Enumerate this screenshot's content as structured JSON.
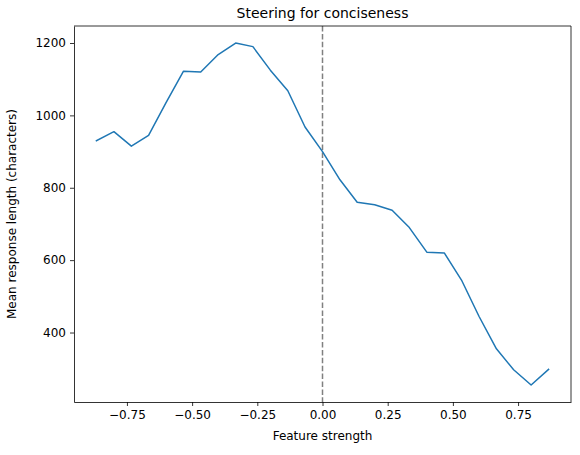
{
  "chart_data": {
    "type": "line",
    "title": "Steering for conciseness",
    "x_label": "Feature strength",
    "y_label": "Mean response length (characters)",
    "x": [
      -0.867,
      -0.8,
      -0.733,
      -0.667,
      -0.6,
      -0.533,
      -0.467,
      -0.4,
      -0.333,
      -0.267,
      -0.2,
      -0.133,
      -0.067,
      0,
      0.067,
      0.133,
      0.2,
      0.267,
      0.333,
      0.4,
      0.467,
      0.533,
      0.6,
      0.667,
      0.733,
      0.8,
      0.867
    ],
    "values": [
      930,
      955,
      915,
      945,
      1035,
      1122,
      1120,
      1168,
      1200,
      1190,
      1125,
      1068,
      968,
      900,
      822,
      760,
      753,
      738,
      690,
      622,
      620,
      545,
      445,
      355,
      297,
      255,
      298
    ],
    "color": "#1f77b4",
    "xlim": [
      -0.953,
      0.953
    ],
    "xticks": [
      {
        "value": -0.75,
        "label": "−0.75"
      },
      {
        "value": -0.5,
        "label": "−0.50"
      },
      {
        "value": -0.25,
        "label": "−0.25"
      },
      {
        "value": 0,
        "label": "0.00"
      },
      {
        "value": 0.25,
        "label": "0.25"
      },
      {
        "value": 0.5,
        "label": "0.50"
      },
      {
        "value": 0.75,
        "label": "0.75"
      }
    ],
    "ylim": [
      208,
      1247
    ],
    "yticks": [
      400,
      600,
      800,
      1000,
      1200
    ],
    "grid": false,
    "reference_line": {
      "x": 0,
      "color": "gray",
      "line_style": "dashed"
    }
  }
}
